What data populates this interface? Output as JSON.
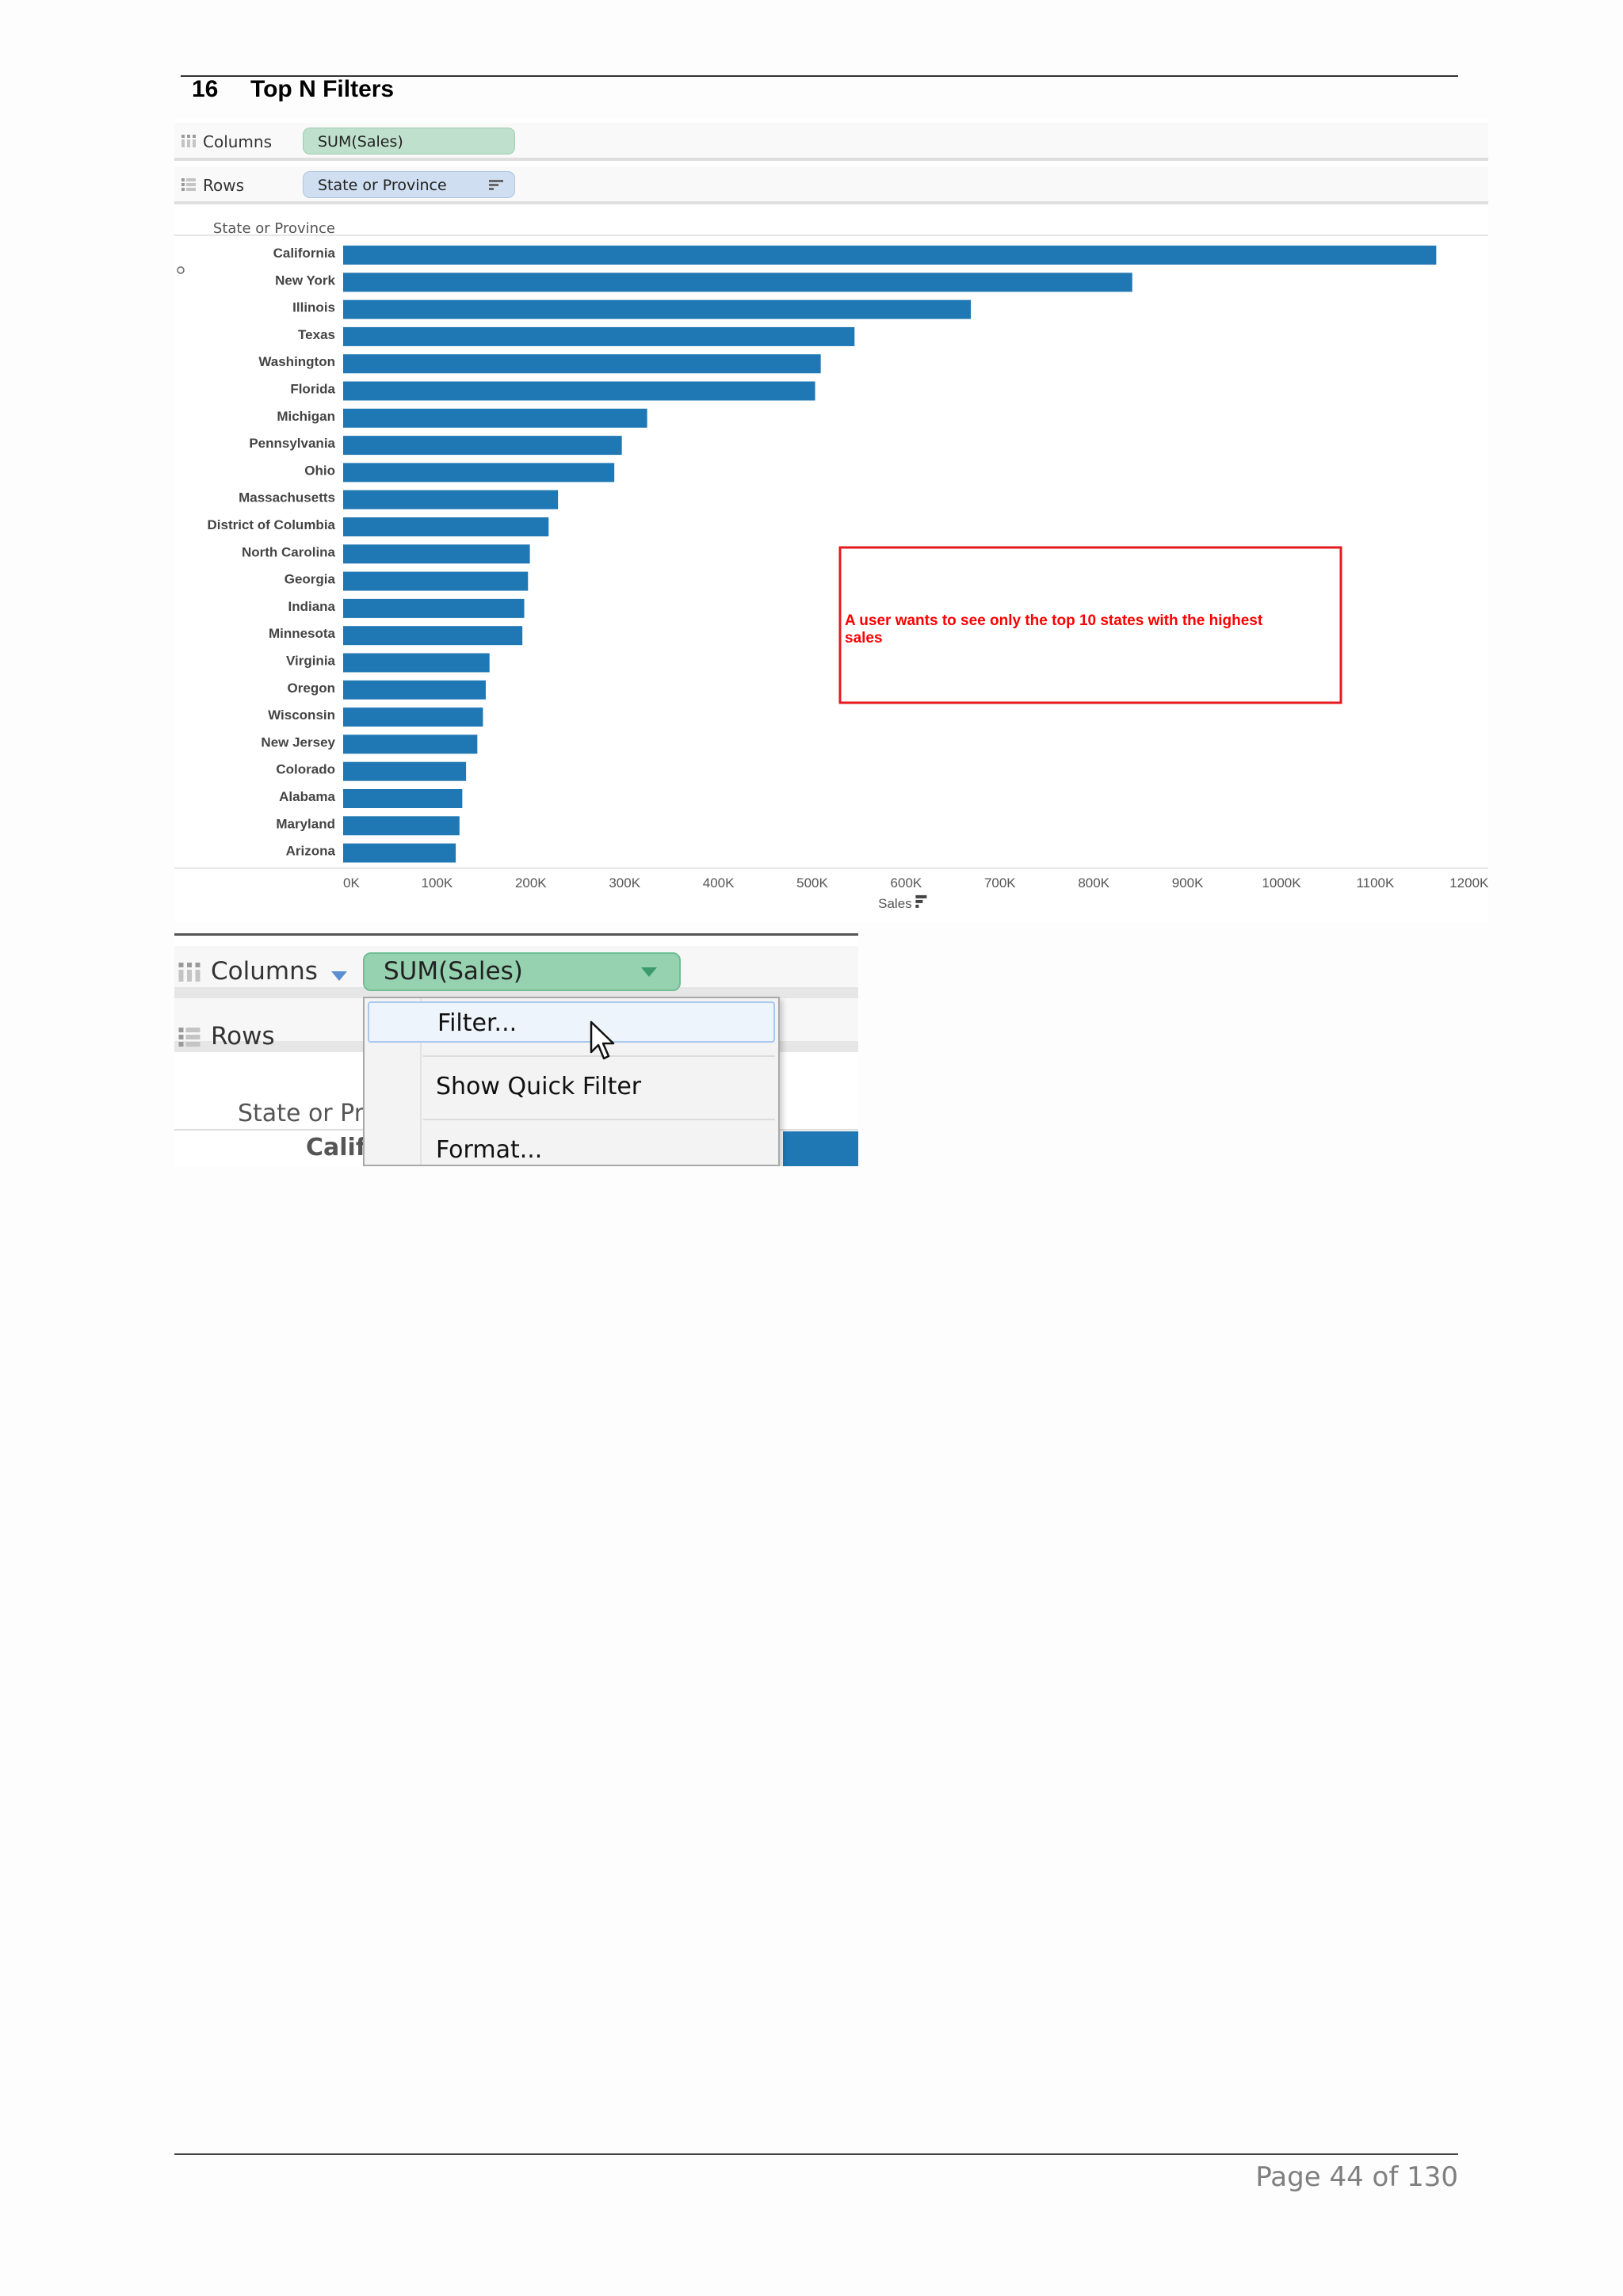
{
  "section": {
    "number": "16",
    "title": "Top N Filters"
  },
  "shelves": {
    "columns_label": "Columns",
    "rows_label": "Rows",
    "columns_pill": "SUM(Sales)",
    "rows_pill": "State or Province"
  },
  "chart_data": {
    "type": "bar",
    "orientation": "horizontal",
    "ylabel": "State or Province",
    "xlabel": "Sales",
    "categories": [
      "California",
      "New York",
      "Illinois",
      "Texas",
      "Washington",
      "Florida",
      "Michigan",
      "Pennsylvania",
      "Ohio",
      "Massachusetts",
      "District of Columbia",
      "North Carolina",
      "Georgia",
      "Indiana",
      "Minnesota",
      "Virginia",
      "Oregon",
      "Wisconsin",
      "New Jersey",
      "Colorado",
      "Alabama",
      "Maryland",
      "Arizona"
    ],
    "values": [
      1165000,
      841000,
      669000,
      545000,
      509000,
      503000,
      324000,
      297000,
      289000,
      229000,
      219000,
      199000,
      197000,
      193000,
      191000,
      156000,
      152000,
      149000,
      143000,
      131000,
      127000,
      124000,
      120000
    ],
    "xticks": [
      "0K",
      "100K",
      "200K",
      "300K",
      "400K",
      "500K",
      "600K",
      "700K",
      "800K",
      "900K",
      "1000K",
      "1100K",
      "1200K"
    ],
    "xlim": [
      0,
      1220000
    ],
    "bar_color": "#1f77b4",
    "annotation": "A user wants to see only the top 10 states with the highest sales",
    "annotation_color": "#ff0000"
  },
  "zoom": {
    "columns_label": "Columns",
    "rows_label": "Rows",
    "pill": "SUM(Sales)",
    "state_header": "State or Prov",
    "first_row": "Califo",
    "menu": [
      "Filter...",
      "Show Quick Filter",
      "Format..."
    ]
  },
  "footer": {
    "page": "Page 44 of 130"
  }
}
